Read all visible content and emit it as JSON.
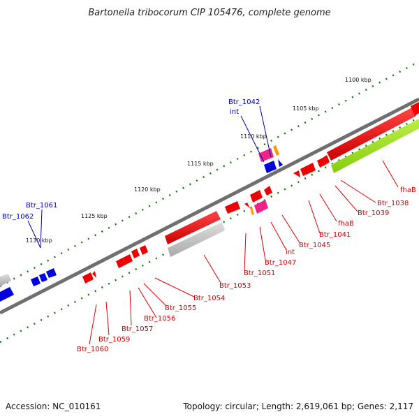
{
  "title": "Bartonella tribocorum CIP 105476, complete genome",
  "footer": {
    "accession": "Accession: NC_010161",
    "summary": "Topology: circular; Length: 2,619,061 bp; Genes: 2,117"
  },
  "scale_labels": [
    "1100 kbp",
    "1105 kbp",
    "1110 kbp",
    "1115 kbp",
    "1120 kbp",
    "1125 kbp",
    "1130 kbp"
  ],
  "gene_labels_blue": [
    "Btr_1042",
    "int",
    "Btr_1061",
    "Btr_1062"
  ],
  "gene_labels_red": [
    "fhaB",
    "Btr_1038",
    "Btr_1039",
    "fhaB",
    "Btr_1041",
    "Btr_1045",
    "int",
    "Btr_1047",
    "Btr_1051",
    "Btr_1053",
    "Btr_1054",
    "Btr_1055",
    "Btr_1056",
    "Btr_1057",
    "Btr_1059",
    "Btr_1060"
  ],
  "colors": {
    "backbone": "#777777",
    "forward_gene": "#0000dd",
    "reverse_gene": "#ee0000",
    "pseudo_gene": "#bbbbbb",
    "rna_gene": "#ee2288",
    "repeat": "#99dd22",
    "misc": "#ff9900",
    "tick": "#117711"
  }
}
